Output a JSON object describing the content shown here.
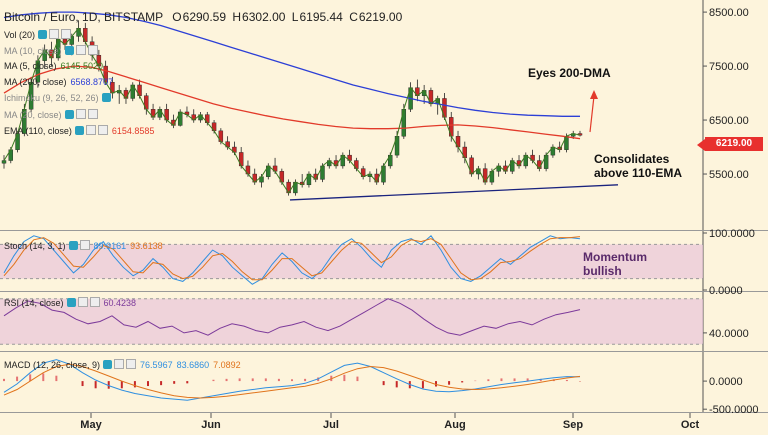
{
  "header": {
    "symbol": "Bitcoin / Euro, 1D, BITSTAMP",
    "open_label": "O",
    "open": "6290.59",
    "high_label": "H",
    "high": "6302.00",
    "low_label": "L",
    "low": "6195.44",
    "close_label": "C",
    "close": "6219.00"
  },
  "indicators": {
    "vol": "Vol (20)",
    "ma_hidden": "MA (10, close)",
    "ma5": "MA (5, close)",
    "ma5_value": "6145.5020",
    "ma200": "MA (200, close)",
    "ma200_value": "6568.8707",
    "ichimoku": "Ichimoku (9, 26, 52, 26)",
    "ma_hidden2": "MA (20, close)",
    "ema110": "EMA (110, close)",
    "ema110_value": "6154.8585"
  },
  "annotations": {
    "eyes": "Eyes 200-DMA",
    "consolidates_1": "Consolidates",
    "consolidates_2": "above 110-EMA",
    "momentum_1": "Momentum",
    "momentum_2": "bullish"
  },
  "price_tag": "6219.00",
  "colors": {
    "background": "#fdf4dc",
    "up": "#2e7d32",
    "down": "#c62828",
    "ma200": "#2c3fd6",
    "ema110": "#e23a2a",
    "ma5": "#3b7a20",
    "stoch_k": "#2f8fe0",
    "stoch_d": "#e0741c",
    "rsi": "#7c3a9a",
    "macd": "#2f8fe0",
    "signal": "#e0741c",
    "band": "#e8c5d8"
  },
  "chart_data": [
    {
      "type": "candlestick",
      "title": "Bitcoin / Euro, 1D, BITSTAMP",
      "ylim": [
        4500,
        8650
      ],
      "y_ticks": [
        "8500.00",
        "7500.00",
        "6500.00",
        "5500.00"
      ],
      "y_tick_values": [
        8500,
        7500,
        6500,
        5500
      ],
      "x_ticks": [
        "May",
        "Jun",
        "Jul",
        "Aug",
        "Sep",
        "Oct"
      ],
      "candles_ohlc": [
        [
          5700,
          5850,
          5600,
          5750
        ],
        [
          5750,
          6000,
          5700,
          5950
        ],
        [
          5950,
          6300,
          5900,
          6250
        ],
        [
          6250,
          6800,
          6200,
          6700
        ],
        [
          6700,
          7300,
          6650,
          7200
        ],
        [
          7200,
          7700,
          7100,
          7600
        ],
        [
          7600,
          7900,
          7450,
          7800
        ],
        [
          7800,
          7950,
          7500,
          7650
        ],
        [
          7650,
          8100,
          7600,
          8000
        ],
        [
          8000,
          8150,
          7800,
          7900
        ],
        [
          7900,
          8100,
          7700,
          8050
        ],
        [
          8050,
          8350,
          7950,
          8200
        ],
        [
          8200,
          8300,
          7900,
          7950
        ],
        [
          7950,
          8050,
          7600,
          7700
        ],
        [
          7700,
          7800,
          7400,
          7500
        ],
        [
          7500,
          7600,
          7150,
          7200
        ],
        [
          7200,
          7300,
          6900,
          7000
        ],
        [
          7000,
          7150,
          6800,
          7050
        ],
        [
          7050,
          7100,
          6800,
          6900
        ],
        [
          6900,
          7200,
          6850,
          7150
        ],
        [
          7150,
          7250,
          6900,
          6950
        ],
        [
          6950,
          7000,
          6600,
          6700
        ],
        [
          6700,
          6800,
          6500,
          6550
        ],
        [
          6550,
          6750,
          6500,
          6700
        ],
        [
          6700,
          6800,
          6450,
          6500
        ],
        [
          6500,
          6600,
          6350,
          6400
        ],
        [
          6400,
          6700,
          6380,
          6650
        ],
        [
          6650,
          6750,
          6550,
          6600
        ],
        [
          6600,
          6700,
          6450,
          6500
        ],
        [
          6500,
          6650,
          6450,
          6600
        ],
        [
          6600,
          6650,
          6400,
          6450
        ],
        [
          6450,
          6500,
          6250,
          6300
        ],
        [
          6300,
          6350,
          6050,
          6100
        ],
        [
          6100,
          6200,
          5950,
          6000
        ],
        [
          6000,
          6100,
          5850,
          5900
        ],
        [
          5900,
          6000,
          5600,
          5650
        ],
        [
          5650,
          5750,
          5450,
          5500
        ],
        [
          5500,
          5600,
          5300,
          5350
        ],
        [
          5350,
          5500,
          5250,
          5450
        ],
        [
          5450,
          5700,
          5400,
          5650
        ],
        [
          5650,
          5800,
          5500,
          5550
        ],
        [
          5550,
          5600,
          5300,
          5350
        ],
        [
          5350,
          5400,
          5100,
          5150
        ],
        [
          5150,
          5400,
          5100,
          5350
        ],
        [
          5350,
          5500,
          5250,
          5300
        ],
        [
          5300,
          5550,
          5250,
          5500
        ],
        [
          5500,
          5600,
          5350,
          5400
        ],
        [
          5400,
          5700,
          5350,
          5650
        ],
        [
          5650,
          5800,
          5600,
          5750
        ],
        [
          5750,
          5850,
          5600,
          5650
        ],
        [
          5650,
          5900,
          5600,
          5850
        ],
        [
          5850,
          5950,
          5700,
          5750
        ],
        [
          5750,
          5800,
          5550,
          5600
        ],
        [
          5600,
          5650,
          5400,
          5450
        ],
        [
          5450,
          5550,
          5350,
          5500
        ],
        [
          5500,
          5600,
          5300,
          5350
        ],
        [
          5350,
          5700,
          5300,
          5650
        ],
        [
          5650,
          5900,
          5600,
          5850
        ],
        [
          5850,
          6300,
          5800,
          6200
        ],
        [
          6200,
          6800,
          6150,
          6700
        ],
        [
          6700,
          7200,
          6650,
          7100
        ],
        [
          7100,
          7250,
          6850,
          6950
        ],
        [
          6950,
          7150,
          6800,
          7050
        ],
        [
          7050,
          7100,
          6750,
          6800
        ],
        [
          6800,
          6950,
          6600,
          6900
        ],
        [
          6900,
          7000,
          6500,
          6550
        ],
        [
          6550,
          6650,
          6100,
          6200
        ],
        [
          6200,
          6300,
          5900,
          6000
        ],
        [
          6000,
          6100,
          5700,
          5800
        ],
        [
          5800,
          5850,
          5450,
          5500
        ],
        [
          5500,
          5650,
          5400,
          5600
        ],
        [
          5600,
          5700,
          5300,
          5350
        ],
        [
          5350,
          5600,
          5300,
          5550
        ],
        [
          5550,
          5700,
          5450,
          5650
        ],
        [
          5650,
          5750,
          5500,
          5550
        ],
        [
          5550,
          5800,
          5500,
          5750
        ],
        [
          5750,
          5850,
          5600,
          5650
        ],
        [
          5650,
          5900,
          5600,
          5850
        ],
        [
          5850,
          5950,
          5700,
          5750
        ],
        [
          5750,
          5850,
          5550,
          5600
        ],
        [
          5600,
          5900,
          5550,
          5850
        ],
        [
          5850,
          6050,
          5800,
          6000
        ],
        [
          6000,
          6100,
          5900,
          5950
        ],
        [
          5950,
          6250,
          5900,
          6200
        ],
        [
          6200,
          6300,
          6150,
          6250
        ],
        [
          6250,
          6300,
          6195,
          6219
        ]
      ],
      "series": [
        {
          "name": "MA (200, close)",
          "values": [
            8400,
            8450,
            8480,
            8500,
            8500,
            8480,
            8450,
            8400,
            8330,
            8250,
            8150,
            8050,
            7950,
            7850,
            7750,
            7650,
            7550,
            7450,
            7350,
            7250,
            7150,
            7070,
            6990,
            6920,
            6850,
            6790,
            6730,
            6680,
            6640,
            6610,
            6590,
            6580,
            6570,
            6569
          ]
        },
        {
          "name": "EMA (110, close)",
          "values": [
            7000,
            7200,
            7350,
            7450,
            7500,
            7480,
            7400,
            7300,
            7200,
            7100,
            7000,
            6900,
            6800,
            6720,
            6650,
            6580,
            6520,
            6470,
            6420,
            6380,
            6350,
            6340,
            6340,
            6350,
            6380,
            6400,
            6410,
            6390,
            6360,
            6320,
            6280,
            6240,
            6200,
            6155
          ]
        },
        {
          "name": "Trendline",
          "values": [
            5020,
            5300
          ]
        }
      ]
    },
    {
      "type": "line",
      "title": "Stoch (14, 3, 1)",
      "legend": [
        "89.9161",
        "93.6138"
      ],
      "ylim": [
        0,
        100
      ],
      "y_ticks": [
        "100.0000",
        "0.0000"
      ],
      "y_tick_values": [
        100,
        0
      ],
      "band": [
        20,
        80
      ],
      "series": [
        {
          "name": "%K",
          "values": [
            30,
            60,
            85,
            95,
            90,
            70,
            50,
            30,
            45,
            70,
            85,
            60,
            40,
            25,
            35,
            55,
            40,
            20,
            15,
            30,
            50,
            70,
            60,
            40,
            25,
            10,
            20,
            45,
            65,
            50,
            30,
            20,
            35,
            60,
            80,
            90,
            75,
            55,
            40,
            70,
            85,
            90,
            80,
            95,
            70,
            40,
            20,
            15,
            25,
            40,
            55,
            45,
            60,
            75,
            85,
            95,
            90,
            92,
            89.9
          ]
        },
        {
          "name": "%D",
          "values": [
            25,
            45,
            70,
            88,
            92,
            82,
            62,
            42,
            40,
            58,
            78,
            72,
            52,
            32,
            30,
            48,
            45,
            28,
            20,
            24,
            40,
            60,
            64,
            50,
            32,
            18,
            18,
            35,
            55,
            55,
            40,
            25,
            30,
            50,
            70,
            85,
            82,
            65,
            48,
            58,
            78,
            88,
            85,
            90,
            80,
            55,
            30,
            18,
            20,
            32,
            48,
            50,
            55,
            68,
            80,
            90,
            92,
            92,
            93.6
          ]
        }
      ]
    },
    {
      "type": "line",
      "title": "RSI (14, close)",
      "legend": [
        "60.4238"
      ],
      "ylim": [
        25,
        75
      ],
      "y_ticks": [
        "40.0000"
      ],
      "y_tick_values": [
        40
      ],
      "band": [
        30,
        70
      ],
      "series": [
        {
          "name": "RSI",
          "values": [
            55,
            62,
            68,
            66,
            60,
            58,
            52,
            48,
            50,
            55,
            47,
            45,
            50,
            44,
            46,
            40,
            42,
            38,
            44,
            48,
            46,
            42,
            40,
            45,
            47,
            50,
            45,
            42,
            46,
            52,
            58,
            64,
            70,
            66,
            60,
            52,
            45,
            40,
            38,
            42,
            46,
            44,
            48,
            50,
            47,
            52,
            56,
            58,
            60.4
          ]
        }
      ]
    },
    {
      "type": "line",
      "title": "MACD (12, 26, close, 9)",
      "legend": [
        "76.5967",
        "83.6860",
        "7.0892"
      ],
      "ylim": [
        -550,
        500
      ],
      "y_ticks": [
        "0.0000",
        "-500.0000"
      ],
      "y_tick_values": [
        0,
        -500
      ],
      "series": [
        {
          "name": "MACD",
          "values": [
            -200,
            -50,
            150,
            320,
            380,
            300,
            150,
            20,
            -80,
            -160,
            -220,
            -260,
            -300,
            -320,
            -340,
            -300,
            -260,
            -220,
            -180,
            -150,
            -120,
            -100,
            -80,
            -40,
            40,
            160,
            280,
            320,
            260,
            150,
            40,
            -60,
            -140,
            -180,
            -190,
            -170,
            -140,
            -100,
            -60,
            -30,
            0,
            30,
            60,
            80,
            76.6
          ]
        },
        {
          "name": "Signal",
          "values": [
            -250,
            -150,
            0,
            150,
            260,
            300,
            260,
            180,
            90,
            0,
            -80,
            -150,
            -210,
            -260,
            -290,
            -300,
            -290,
            -270,
            -240,
            -210,
            -180,
            -150,
            -120,
            -90,
            -40,
            40,
            140,
            220,
            260,
            240,
            180,
            100,
            20,
            -60,
            -110,
            -140,
            -150,
            -140,
            -120,
            -90,
            -60,
            -20,
            20,
            55,
            83.7
          ]
        }
      ]
    }
  ]
}
